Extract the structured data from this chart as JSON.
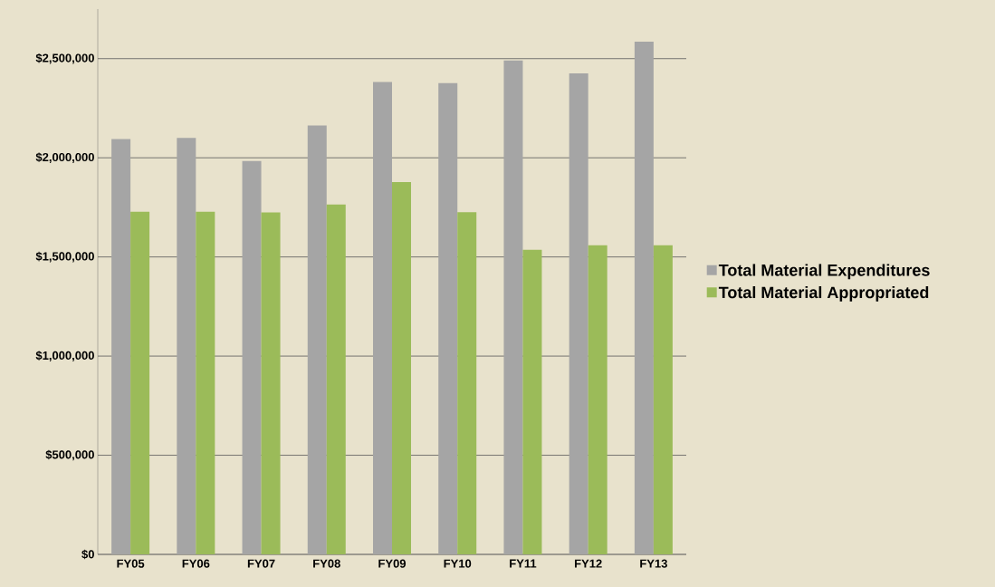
{
  "chart_data": {
    "type": "bar",
    "categories": [
      "FY05",
      "FY06",
      "FY07",
      "FY08",
      "FY09",
      "FY10",
      "FY11",
      "FY12",
      "FY13"
    ],
    "series": [
      {
        "name": "Total Material Expenditures",
        "color": "#a5a5a5",
        "values": [
          2095000,
          2100000,
          1984000,
          2163000,
          2382000,
          2376000,
          2491000,
          2426000,
          2585000
        ]
      },
      {
        "name": "Total Material Appropriated",
        "color": "#9bbb59",
        "values": [
          1728000,
          1728000,
          1724000,
          1764000,
          1878000,
          1726000,
          1536000,
          1559000,
          1559000
        ]
      }
    ],
    "ylim": [
      0,
      2750000
    ],
    "yticks": [
      {
        "value": 0,
        "label": "$0"
      },
      {
        "value": 500000,
        "label": "$500,000"
      },
      {
        "value": 1000000,
        "label": "$1,000,000"
      },
      {
        "value": 1500000,
        "label": "$1,500,000"
      },
      {
        "value": 2000000,
        "label": "$2,000,000"
      },
      {
        "value": 2500000,
        "label": "$2,500,000"
      }
    ],
    "grid": "y",
    "legend": "right"
  }
}
